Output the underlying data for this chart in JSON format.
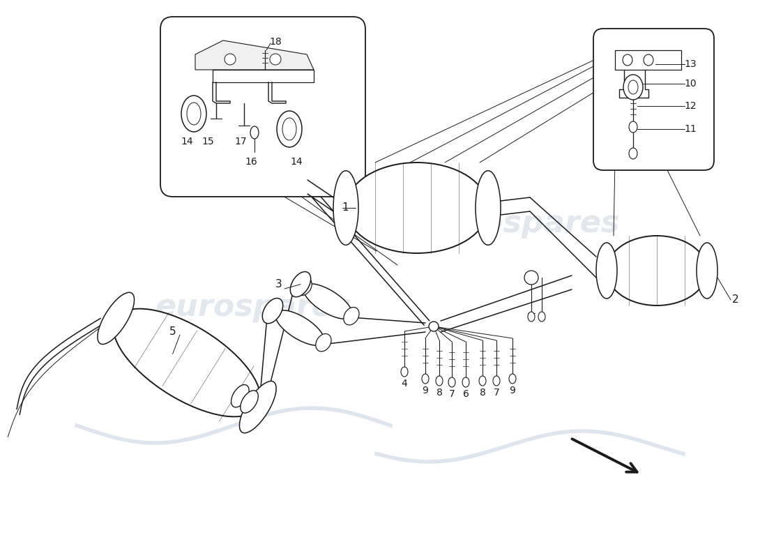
{
  "bg_color": "#ffffff",
  "line_color": "#1a1a1a",
  "watermark_text": "eurospares",
  "watermark_color": "#c0ccd8",
  "watermark_alpha": 0.45,
  "watermark_fontsize": 32,
  "label_fontsize": 11,
  "lw_main": 1.4,
  "lw_pipe": 1.1,
  "lw_thin": 0.7
}
